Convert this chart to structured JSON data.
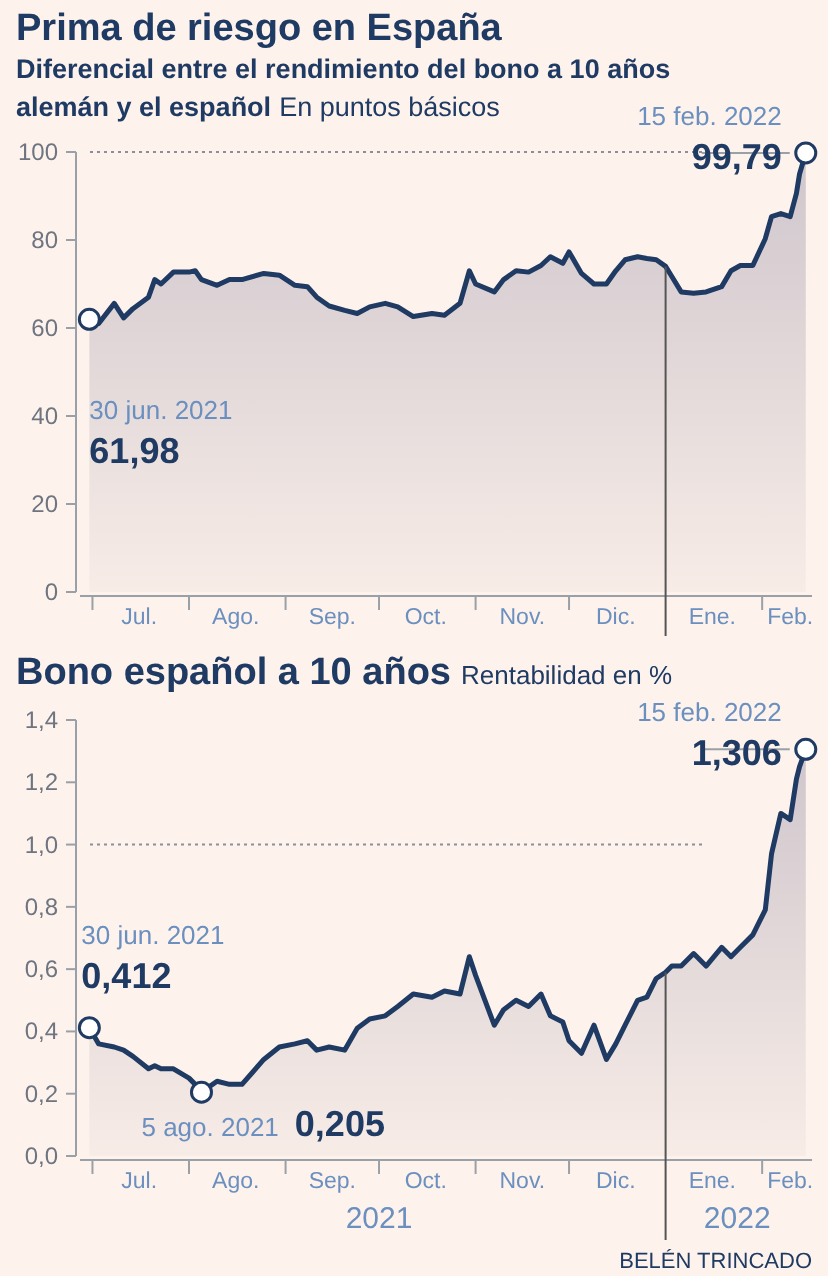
{
  "chart_data": [
    {
      "type": "area",
      "title": "Prima de riesgo en España",
      "subtitle": "Diferencial entre el rendimiento del bono a 10 años alemán y el español",
      "ylabel": "En puntos básicos",
      "x": [
        "2021-06-30",
        "2021-07-03",
        "2021-07-08",
        "2021-07-11",
        "2021-07-14",
        "2021-07-19",
        "2021-07-21",
        "2021-07-23",
        "2021-07-27",
        "2021-08-01",
        "2021-08-03",
        "2021-08-05",
        "2021-08-10",
        "2021-08-14",
        "2021-08-18",
        "2021-08-25",
        "2021-08-30",
        "2021-09-04",
        "2021-09-08",
        "2021-09-11",
        "2021-09-15",
        "2021-09-20",
        "2021-09-24",
        "2021-09-28",
        "2021-10-03",
        "2021-10-07",
        "2021-10-12",
        "2021-10-18",
        "2021-10-22",
        "2021-10-27",
        "2021-10-30",
        "2021-11-01",
        "2021-11-07",
        "2021-11-10",
        "2021-11-14",
        "2021-11-18",
        "2021-11-22",
        "2021-11-25",
        "2021-11-29",
        "2021-12-01",
        "2021-12-05",
        "2021-12-09",
        "2021-12-13",
        "2021-12-16",
        "2021-12-19",
        "2021-12-23",
        "2021-12-26",
        "2021-12-29",
        "2022-01-01",
        "2022-01-03",
        "2022-01-06",
        "2022-01-10",
        "2022-01-14",
        "2022-01-19",
        "2022-01-22",
        "2022-01-25",
        "2022-01-29",
        "2022-02-02",
        "2022-02-04",
        "2022-02-07",
        "2022-02-10",
        "2022-02-12",
        "2022-02-13",
        "2022-02-15"
      ],
      "series": [
        {
          "color": "#1f3a63",
          "values": [
            61.98,
            61,
            65.6,
            62.3,
            64.4,
            67,
            71,
            70,
            72.7,
            72.7,
            73,
            71,
            69.7,
            71,
            71,
            72.4,
            72,
            69.7,
            69.4,
            67,
            65,
            64,
            63.3,
            64.8,
            65.6,
            64.8,
            62.6,
            63.3,
            62.9,
            65.6,
            73,
            70,
            68.2,
            71,
            73,
            72.7,
            74.2,
            76.2,
            74.7,
            77.3,
            72.4,
            70,
            70,
            73,
            75.5,
            76.2,
            75.8,
            75.5,
            74,
            71.7,
            68.2,
            67.9,
            68.2,
            69.4,
            73,
            74.2,
            74.2,
            80.3,
            85.3,
            86,
            85.3,
            90.6,
            95,
            99.79
          ]
        }
      ],
      "xlim": [
        "2021-06-27",
        "2022-02-17"
      ],
      "xticks": [
        {
          "value": "2021-07-01",
          "label": null
        },
        {
          "value": "2021-07-16",
          "label": "Jul."
        },
        {
          "value": "2021-08-01",
          "label": null
        },
        {
          "value": "2021-08-16",
          "label": "Ago."
        },
        {
          "value": "2021-09-01",
          "label": null
        },
        {
          "value": "2021-09-16",
          "label": "Sep."
        },
        {
          "value": "2021-10-01",
          "label": null
        },
        {
          "value": "2021-10-16",
          "label": "Oct."
        },
        {
          "value": "2021-11-01",
          "label": null
        },
        {
          "value": "2021-11-16",
          "label": "Nov."
        },
        {
          "value": "2021-12-01",
          "label": null
        },
        {
          "value": "2021-12-16",
          "label": "Dic."
        },
        {
          "value": "2022-01-16",
          "label": "Ene."
        },
        {
          "value": "2022-02-01",
          "label": null
        },
        {
          "value": "2022-02-10",
          "label": "Feb."
        }
      ],
      "ylim": [
        0,
        100
      ],
      "yticks": [
        0,
        20,
        40,
        60,
        80,
        100
      ],
      "ref_lines": [
        {
          "axis": "y",
          "value": 100,
          "color": "#8a8f99",
          "line_style": "dotted"
        },
        {
          "axis": "x",
          "value": "2022-01-01",
          "color": "#555555",
          "line_style": "solid"
        }
      ],
      "annotations": [
        {
          "text": "30 jun. 2021\n61,98",
          "x": "2021-06-30",
          "y": 61.98
        },
        {
          "text": "15 feb. 2022\n99,79",
          "x": "2022-02-15",
          "y": 99.79
        }
      ]
    },
    {
      "type": "area",
      "title": "Bono español a 10 años",
      "ylabel": "Rentabilidad en %",
      "x": [
        "2021-06-30",
        "2021-07-03",
        "2021-07-08",
        "2021-07-11",
        "2021-07-14",
        "2021-07-19",
        "2021-07-21",
        "2021-07-23",
        "2021-07-27",
        "2021-08-01",
        "2021-08-03",
        "2021-08-05",
        "2021-08-10",
        "2021-08-14",
        "2021-08-18",
        "2021-08-25",
        "2021-08-30",
        "2021-09-04",
        "2021-09-08",
        "2021-09-11",
        "2021-09-15",
        "2021-09-20",
        "2021-09-24",
        "2021-09-28",
        "2021-10-03",
        "2021-10-07",
        "2021-10-12",
        "2021-10-18",
        "2021-10-22",
        "2021-10-27",
        "2021-10-30",
        "2021-11-01",
        "2021-11-07",
        "2021-11-10",
        "2021-11-14",
        "2021-11-18",
        "2021-11-22",
        "2021-11-25",
        "2021-11-29",
        "2021-12-01",
        "2021-12-05",
        "2021-12-09",
        "2021-12-13",
        "2021-12-16",
        "2021-12-19",
        "2021-12-23",
        "2021-12-26",
        "2021-12-29",
        "2022-01-01",
        "2022-01-03",
        "2022-01-06",
        "2022-01-10",
        "2022-01-14",
        "2022-01-19",
        "2022-01-22",
        "2022-01-25",
        "2022-01-29",
        "2022-02-02",
        "2022-02-04",
        "2022-02-07",
        "2022-02-10",
        "2022-02-12",
        "2022-02-13",
        "2022-02-15"
      ],
      "series": [
        {
          "color": "#1f3a63",
          "values": [
            0.412,
            0.36,
            0.35,
            0.34,
            0.32,
            0.28,
            0.29,
            0.28,
            0.28,
            0.25,
            0.23,
            0.205,
            0.24,
            0.23,
            0.23,
            0.31,
            0.35,
            0.36,
            0.37,
            0.34,
            0.35,
            0.34,
            0.41,
            0.44,
            0.45,
            0.48,
            0.52,
            0.51,
            0.53,
            0.52,
            0.64,
            0.58,
            0.42,
            0.47,
            0.5,
            0.48,
            0.52,
            0.45,
            0.43,
            0.37,
            0.33,
            0.42,
            0.31,
            0.36,
            0.42,
            0.5,
            0.51,
            0.57,
            0.59,
            0.61,
            0.61,
            0.65,
            0.61,
            0.67,
            0.64,
            0.67,
            0.71,
            0.79,
            0.97,
            1.1,
            1.08,
            1.21,
            1.25,
            1.306
          ]
        }
      ],
      "xlim": [
        "2021-06-27",
        "2022-02-17"
      ],
      "xticks": [
        {
          "value": "2021-07-01",
          "label": null
        },
        {
          "value": "2021-07-16",
          "label": "Jul."
        },
        {
          "value": "2021-08-01",
          "label": null
        },
        {
          "value": "2021-08-16",
          "label": "Ago."
        },
        {
          "value": "2021-09-01",
          "label": null
        },
        {
          "value": "2021-09-16",
          "label": "Sep."
        },
        {
          "value": "2021-10-01",
          "label": null
        },
        {
          "value": "2021-10-16",
          "label": "Oct."
        },
        {
          "value": "2021-11-01",
          "label": null
        },
        {
          "value": "2021-11-16",
          "label": "Nov."
        },
        {
          "value": "2021-12-01",
          "label": null
        },
        {
          "value": "2021-12-16",
          "label": "Dic."
        },
        {
          "value": "2022-01-16",
          "label": "Ene."
        },
        {
          "value": "2022-02-01",
          "label": null
        },
        {
          "value": "2022-02-10",
          "label": "Feb."
        }
      ],
      "x2lim": [
        "2021-06-27",
        "2022-02-17"
      ],
      "x2ticks": [
        {
          "value": "2021-10-01",
          "label": "2021"
        },
        {
          "value": "2022-01-24",
          "label": "2022"
        }
      ],
      "ylim": [
        0,
        1.4
      ],
      "yticks": [
        {
          "value": 0,
          "label": "0,0"
        },
        {
          "value": 0.2,
          "label": "0,2"
        },
        {
          "value": 0.4,
          "label": "0,4"
        },
        {
          "value": 0.6,
          "label": "0,6"
        },
        {
          "value": 0.8,
          "label": "0,8"
        },
        {
          "value": 1,
          "label": "1,0"
        },
        {
          "value": 1.2,
          "label": "1,2"
        },
        {
          "value": 1.4,
          "label": "1,4"
        }
      ],
      "ref_lines": [
        {
          "axis": "y",
          "value": 1,
          "color": "#8a8f99",
          "line_style": "dotted"
        },
        {
          "axis": "x",
          "value": "2022-01-01",
          "color": "#555555",
          "line_style": "solid"
        }
      ],
      "annotations": [
        {
          "text": "30 jun. 2021\n0,412",
          "x": "2021-06-30",
          "y": 0.412
        },
        {
          "text": "5 ago. 2021\n0,205",
          "x": "2021-08-05",
          "y": 0.205
        },
        {
          "text": "15 feb. 2022\n1,306",
          "x": "2022-02-15",
          "y": 1.306
        },
        "BELÉN TRINCADO"
      ]
    }
  ]
}
